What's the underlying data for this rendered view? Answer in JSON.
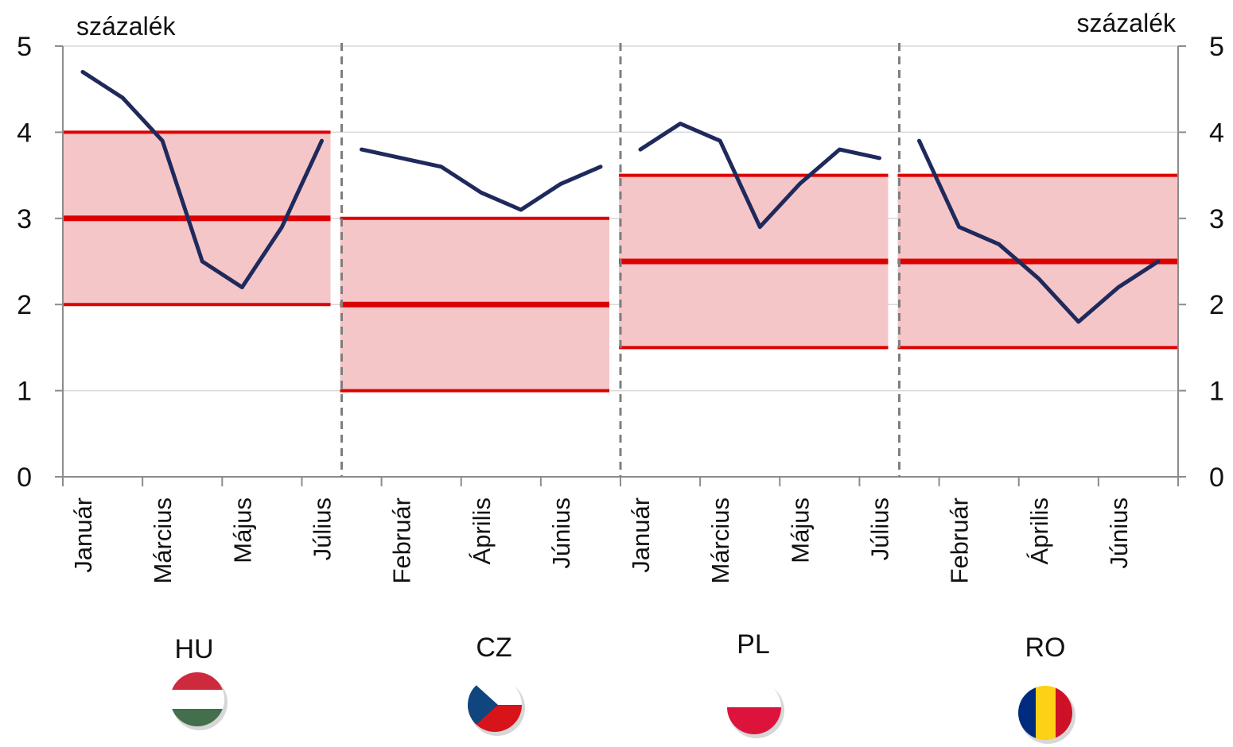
{
  "chart_data": {
    "type": "line",
    "y_unit_left": "százalék",
    "y_unit_right": "százalék",
    "ylim": [
      0,
      5
    ],
    "yticks": [
      "0",
      "1",
      "2",
      "3",
      "4",
      "5"
    ],
    "grid": true,
    "months": [
      "Január",
      "Február",
      "Március",
      "Április",
      "Május",
      "Június",
      "Július"
    ],
    "panels": [
      {
        "country": "HU",
        "x_labels": [
          "Január",
          "Március",
          "Május",
          "Július"
        ],
        "values": [
          4.7,
          4.4,
          3.9,
          2.5,
          2.2,
          2.9,
          3.9
        ],
        "target_band": {
          "low": 2.0,
          "center": 3.0,
          "high": 4.0
        }
      },
      {
        "country": "CZ",
        "x_labels": [
          "Február",
          "Április",
          "Június"
        ],
        "values": [
          3.8,
          3.7,
          3.6,
          3.3,
          3.1,
          3.4,
          3.6
        ],
        "target_band": {
          "low": 1.0,
          "center": 2.0,
          "high": 3.0
        }
      },
      {
        "country": "PL",
        "x_labels": [
          "Január",
          "Március",
          "Május",
          "Július"
        ],
        "values": [
          3.8,
          4.1,
          3.9,
          2.9,
          3.4,
          3.8,
          3.7
        ],
        "target_band": {
          "low": 1.5,
          "center": 2.5,
          "high": 3.5
        }
      },
      {
        "country": "RO",
        "x_labels": [
          "Február",
          "Április",
          "Június"
        ],
        "values": [
          3.9,
          2.9,
          2.7,
          2.3,
          1.8,
          2.2,
          2.5
        ],
        "target_band": {
          "low": 1.5,
          "center": 2.5,
          "high": 3.5
        }
      }
    ]
  },
  "colors": {
    "line": "#1f2a5c",
    "band_fill": "#f5c6c8",
    "band_line": "#dd0000",
    "grid": "#d9d9d9",
    "axis": "#8c8c8c",
    "separator": "#7f7f7f"
  },
  "flags": [
    {
      "country": "HU",
      "icon": "hungary-flag-icon",
      "colors": [
        "#cd2a3e",
        "#ffffff",
        "#436f4d"
      ]
    },
    {
      "country": "CZ",
      "icon": "czech-flag-icon",
      "colors": [
        "#ffffff",
        "#d7141a",
        "#11457e"
      ]
    },
    {
      "country": "PL",
      "icon": "poland-flag-icon",
      "colors": [
        "#ffffff",
        "#dc143c"
      ]
    },
    {
      "country": "RO",
      "icon": "romania-flag-icon",
      "colors": [
        "#002b7f",
        "#fcd116",
        "#ce1126"
      ]
    }
  ]
}
